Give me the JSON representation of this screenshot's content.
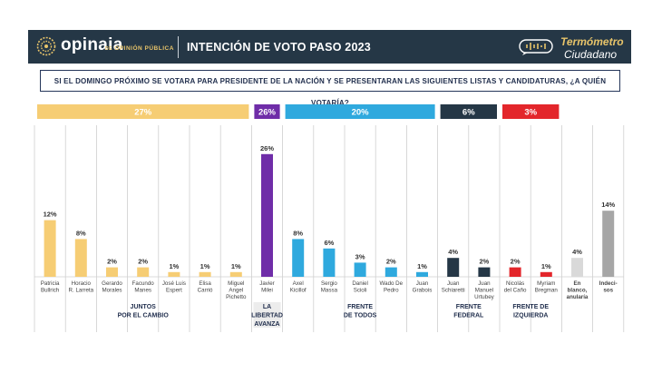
{
  "header": {
    "brand": "opinaia",
    "brand_sub": "OPINIÓN PÚBLICA",
    "brand_sub_prefix": "DE",
    "title": "INTENCIÓN DE VOTO PASO 2023",
    "badge_line1": "Termómetro",
    "badge_line2": "Ciudadano"
  },
  "question": "SI EL DOMINGO PRÓXIMO SE VOTARA PARA PRESIDENTE DE LA NACIÓN Y SE PRESENTARAN LAS SIGUIENTES LISTAS Y CANDIDATURAS, ¿A QUIÉN VOTARÍA?",
  "colors": {
    "jxc": "#f6cd74",
    "lla": "#6f2da8",
    "fdt": "#2fa9de",
    "ff": "#253746",
    "fit": "#e3262b",
    "blank": "#d9d9d9",
    "undecided": "#a6a6a6",
    "header_bg": "#253746",
    "accent": "#e8c46a"
  },
  "chart_data": {
    "type": "bar",
    "ylabel": "",
    "ylim": [
      0,
      30
    ],
    "groups": [
      {
        "name": "JUNTOS POR EL CAMBIO",
        "name_lines": [
          "JUNTOS",
          "POR EL CAMBIO"
        ],
        "total": "27%",
        "color": "#f6cd74",
        "text_color": "#ffffff"
      },
      {
        "name": "LA LIBERTAD AVANZA",
        "name_lines": [
          "LA",
          "LIBERTAD",
          "AVANZA"
        ],
        "total": "26%",
        "color": "#6f2da8",
        "text_color": "#ffffff"
      },
      {
        "name": "FRENTE DE TODOS",
        "name_lines": [
          "FRENTE",
          "DE TODOS"
        ],
        "total": "20%",
        "color": "#2fa9de",
        "text_color": "#ffffff"
      },
      {
        "name": "FRENTE FEDERAL",
        "name_lines": [
          "FRENTE",
          "FEDERAL"
        ],
        "total": "6%",
        "color": "#253746",
        "text_color": "#ffffff"
      },
      {
        "name": "FRENTE DE IZQUIERDA",
        "name_lines": [
          "FRENTE DE",
          "IZQUIERDA"
        ],
        "total": "3%",
        "color": "#e3262b",
        "text_color": "#ffffff"
      }
    ],
    "categories": [
      {
        "name": "Patricia Bullrich",
        "lines": [
          "Patricia",
          "Bullrich"
        ],
        "value": 12,
        "label": "12%",
        "group": 0
      },
      {
        "name": "Horacio R. Larreta",
        "lines": [
          "Horacio",
          "R. Larreta"
        ],
        "value": 8,
        "label": "8%",
        "group": 0
      },
      {
        "name": "Gerardo Morales",
        "lines": [
          "Gerardo",
          "Morales"
        ],
        "value": 2,
        "label": "2%",
        "group": 0
      },
      {
        "name": "Facundo Manes",
        "lines": [
          "Facundo",
          "Manes"
        ],
        "value": 2,
        "label": "2%",
        "group": 0
      },
      {
        "name": "José Luis Espert",
        "lines": [
          "José Luis",
          "Espert"
        ],
        "value": 1,
        "label": "1%",
        "group": 0
      },
      {
        "name": "Elisa Carrió",
        "lines": [
          "Elisa",
          "Carrió"
        ],
        "value": 1,
        "label": "1%",
        "group": 0
      },
      {
        "name": "Miguel Angel Pichetto",
        "lines": [
          "Miguel",
          "Angel",
          "Pichetto"
        ],
        "value": 1,
        "label": "1%",
        "group": 0
      },
      {
        "name": "Javier Milei",
        "lines": [
          "Javier",
          "Milei"
        ],
        "value": 26,
        "label": "26%",
        "group": 1
      },
      {
        "name": "Axel Kicillof",
        "lines": [
          "Axel",
          "Kicillof"
        ],
        "value": 8,
        "label": "8%",
        "group": 2
      },
      {
        "name": "Sergio Massa",
        "lines": [
          "Sergio",
          "Massa"
        ],
        "value": 6,
        "label": "6%",
        "group": 2
      },
      {
        "name": "Daniel Scioli",
        "lines": [
          "Daniel",
          "Scioli"
        ],
        "value": 3,
        "label": "3%",
        "group": 2
      },
      {
        "name": "Wado De Pedro",
        "lines": [
          "Wado De",
          "Pedro"
        ],
        "value": 2,
        "label": "2%",
        "group": 2
      },
      {
        "name": "Juan Grabois",
        "lines": [
          "Juan",
          "Grabois"
        ],
        "value": 1,
        "label": "1%",
        "group": 2
      },
      {
        "name": "Juan Schiaretti",
        "lines": [
          "Juan",
          "Schiaretti"
        ],
        "value": 4,
        "label": "4%",
        "group": 3
      },
      {
        "name": "Juan Manuel Urtubey",
        "lines": [
          "Juan",
          "Manuel",
          "Urtubey"
        ],
        "value": 2,
        "label": "2%",
        "group": 3
      },
      {
        "name": "Nicolás del Caño",
        "lines": [
          "Nicolás",
          "del Caño"
        ],
        "value": 2,
        "label": "2%",
        "group": 4
      },
      {
        "name": "Myriam Bregman",
        "lines": [
          "Myriam",
          "Bregman"
        ],
        "value": 1,
        "label": "1%",
        "group": 4
      },
      {
        "name": "En blanco, anularía",
        "lines": [
          "En",
          "blanco,",
          "anularía"
        ],
        "value": 4,
        "label": "4%",
        "group": null,
        "color": "#d9d9d9"
      },
      {
        "name": "Indecisos",
        "lines": [
          "Indeci-",
          "sos"
        ],
        "value": 14,
        "label": "14%",
        "group": null,
        "color": "#a6a6a6"
      }
    ]
  }
}
